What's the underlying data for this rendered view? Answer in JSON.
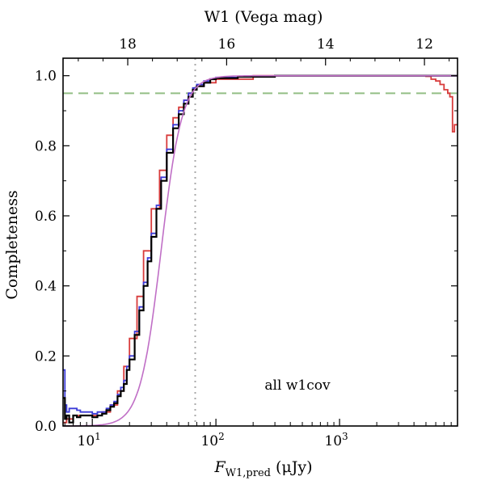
{
  "chart_data": {
    "type": "line",
    "xscale": "log",
    "xlim": [
      5.8,
      9000
    ],
    "ylim": [
      0,
      1.05
    ],
    "ylabel": "Completeness",
    "xlabel_main": "F",
    "xlabel_sub": "W1,pred",
    "xlabel_units": " (μJy)",
    "top_xlabel": "W1 (Vega mag)",
    "annotation": "all w1cov",
    "x_ticks": [
      {
        "value": 10,
        "base": "10",
        "exp": "1"
      },
      {
        "value": 100,
        "base": "10",
        "exp": "2"
      },
      {
        "value": 1000,
        "base": "10",
        "exp": "3"
      }
    ],
    "y_ticks": [
      {
        "value": 0.0,
        "label": "0.0"
      },
      {
        "value": 0.2,
        "label": "0.2"
      },
      {
        "value": 0.4,
        "label": "0.4"
      },
      {
        "value": 0.6,
        "label": "0.6"
      },
      {
        "value": 0.8,
        "label": "0.8"
      },
      {
        "value": 1.0,
        "label": "1.0"
      }
    ],
    "top_ticks": [
      {
        "mag": 18,
        "label": "18"
      },
      {
        "mag": 16,
        "label": "16"
      },
      {
        "mag": 14,
        "label": "14"
      },
      {
        "mag": 12,
        "label": "12"
      }
    ],
    "mag_zero_flux_ujy": 306700000,
    "reference_lines": {
      "horizontal_y": 0.95,
      "vertical_x": 68
    },
    "series": [
      {
        "color": "#d83b3b",
        "style": "step",
        "x": [
          5.8,
          6.2,
          7,
          8,
          9,
          10,
          12,
          14,
          16,
          18,
          20,
          23,
          26,
          30,
          35,
          40,
          45,
          50,
          55,
          60,
          65,
          70,
          80,
          100,
          200,
          500,
          1000,
          2000,
          3000,
          4000,
          5000,
          5500,
          6000,
          6500,
          7000,
          7500,
          7800,
          8200,
          8500,
          9000
        ],
        "y": [
          0.01,
          0.02,
          0.03,
          0.03,
          0.03,
          0.03,
          0.04,
          0.06,
          0.1,
          0.17,
          0.25,
          0.37,
          0.5,
          0.62,
          0.73,
          0.83,
          0.88,
          0.91,
          0.93,
          0.95,
          0.96,
          0.97,
          0.98,
          0.99,
          1.0,
          1.0,
          1.0,
          1.0,
          1.0,
          1.0,
          0.998,
          0.99,
          0.985,
          0.975,
          0.96,
          0.95,
          0.94,
          0.84,
          0.86,
          0.86
        ]
      },
      {
        "color": "#3b3bd8",
        "style": "step",
        "x": [
          5.8,
          6.0,
          6.2,
          6.5,
          7,
          7.5,
          8,
          9,
          10,
          11,
          12,
          13,
          14,
          15,
          16,
          17,
          18,
          19,
          20,
          22,
          24,
          26,
          28,
          30,
          33,
          36,
          40,
          45,
          50,
          55,
          60,
          65,
          70,
          80,
          90,
          100,
          150,
          300,
          1000,
          3000,
          9000
        ],
        "y": [
          0.16,
          0.06,
          0.04,
          0.05,
          0.05,
          0.045,
          0.04,
          0.04,
          0.035,
          0.04,
          0.04,
          0.05,
          0.06,
          0.07,
          0.09,
          0.11,
          0.13,
          0.17,
          0.2,
          0.27,
          0.34,
          0.41,
          0.48,
          0.55,
          0.63,
          0.71,
          0.79,
          0.86,
          0.9,
          0.93,
          0.95,
          0.965,
          0.975,
          0.985,
          0.99,
          0.995,
          0.998,
          1.0,
          1.0,
          1.0,
          1.0
        ]
      },
      {
        "color": "#000000",
        "style": "step",
        "x": [
          5.8,
          6.0,
          6.2,
          6.5,
          7,
          7.5,
          8,
          9,
          10,
          11,
          12,
          13,
          14,
          15,
          16,
          17,
          18,
          19,
          20,
          22,
          24,
          26,
          28,
          30,
          33,
          36,
          40,
          45,
          50,
          55,
          60,
          65,
          70,
          80,
          90,
          100,
          150,
          300,
          1000,
          3000,
          9000
        ],
        "y": [
          0.08,
          0.02,
          0.03,
          0.01,
          0.03,
          0.025,
          0.03,
          0.03,
          0.025,
          0.03,
          0.035,
          0.045,
          0.055,
          0.065,
          0.085,
          0.1,
          0.12,
          0.16,
          0.19,
          0.26,
          0.33,
          0.4,
          0.47,
          0.54,
          0.62,
          0.7,
          0.78,
          0.85,
          0.89,
          0.92,
          0.94,
          0.96,
          0.97,
          0.98,
          0.99,
          0.993,
          0.997,
          1.0,
          1.0,
          1.0,
          1.0
        ]
      },
      {
        "color": "#c06fc6",
        "style": "smooth",
        "model": "logistic-log10",
        "x0": 36,
        "log_width": 0.085
      }
    ]
  }
}
